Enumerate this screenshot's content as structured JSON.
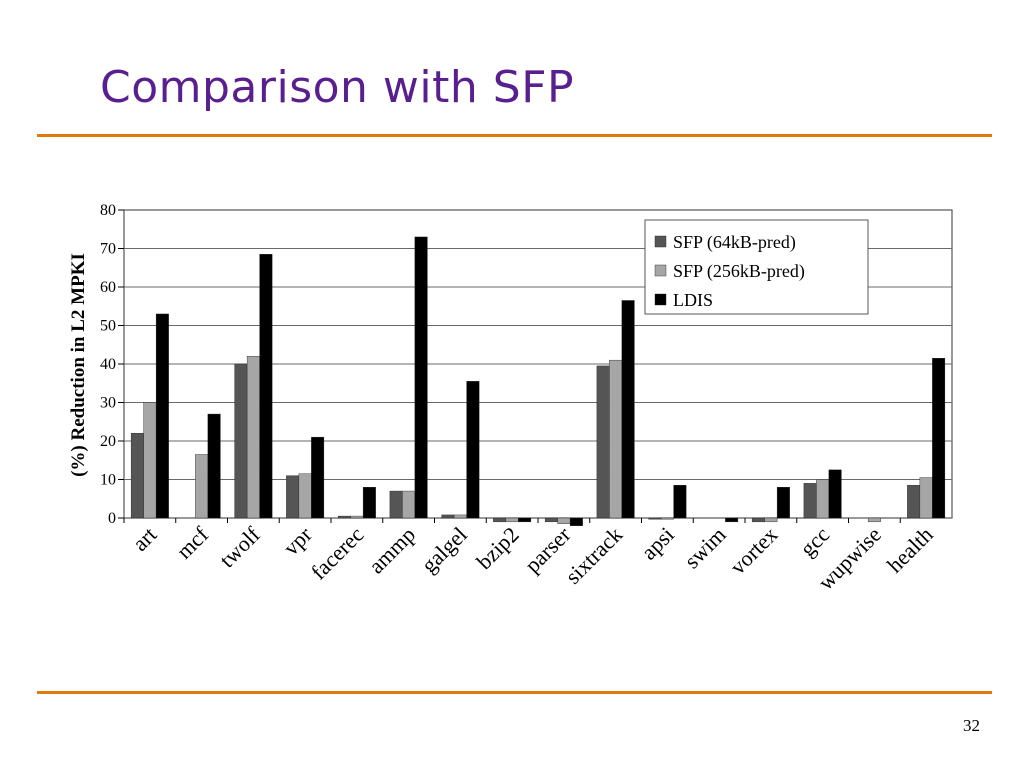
{
  "slide": {
    "title": "Comparison with SFP",
    "page_number": "32"
  },
  "colors": {
    "title": "#5a1f8e",
    "rule": "#e07a10",
    "series_sfp64": "#555555",
    "series_sfp256": "#a6a6a6",
    "series_ldis": "#000000"
  },
  "chart_data": {
    "type": "bar",
    "title": "",
    "xlabel": "",
    "ylabel": "(%) Reduction in L2 MPKI",
    "ylim": [
      0,
      80
    ],
    "yticks": [
      0,
      10,
      20,
      30,
      40,
      50,
      60,
      70,
      80
    ],
    "grid": true,
    "legend_position": "top-right",
    "categories": [
      "art",
      "mcf",
      "twolf",
      "vpr",
      "facerec",
      "ammp",
      "galgel",
      "bzip2",
      "parser",
      "sixtrack",
      "apsi",
      "swim",
      "vortex",
      "gcc",
      "wupwise",
      "health"
    ],
    "series": [
      {
        "name": "SFP (64kB-pred)",
        "color": "#555555",
        "values": [
          22,
          0,
          40,
          11,
          0.5,
          7,
          0.8,
          -1,
          -1,
          39.5,
          -0.3,
          0,
          -1,
          9,
          0,
          8.5
        ]
      },
      {
        "name": "SFP (256kB-pred)",
        "color": "#a6a6a6",
        "values": [
          30,
          16.5,
          42,
          11.5,
          0.5,
          7,
          0.8,
          -1,
          -1.5,
          41,
          -0.3,
          0,
          -1,
          10,
          -1,
          10.5
        ]
      },
      {
        "name": "LDIS",
        "color": "#000000",
        "values": [
          53,
          27,
          68.5,
          21,
          8,
          73,
          35.5,
          -1,
          -2,
          56.5,
          8.5,
          -1,
          8,
          12.5,
          0,
          41.5
        ]
      }
    ]
  }
}
